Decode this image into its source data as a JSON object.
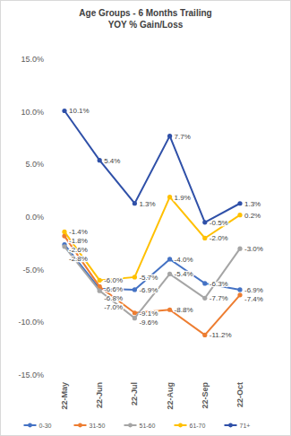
{
  "chart_data": {
    "type": "line",
    "title": "Age Groups - 6 Months Trailing",
    "subtitle": "YOY % Gain/Loss",
    "categories": [
      "22-May",
      "22-Jun",
      "22-Jul",
      "22-Aug",
      "22-Sep",
      "22-Oct"
    ],
    "ylim": [
      -15,
      15
    ],
    "yticks": [
      {
        "value": -15,
        "label": "-15.0%"
      },
      {
        "value": -10,
        "label": "-10.0%"
      },
      {
        "value": -5,
        "label": "-5.0%"
      },
      {
        "value": 0,
        "label": "0.0%"
      },
      {
        "value": 5,
        "label": "5.0%"
      },
      {
        "value": 10,
        "label": "10.0%"
      },
      {
        "value": 15,
        "label": "15.0%"
      }
    ],
    "grid": false,
    "data_labels": true,
    "legend": "bottom",
    "marker": "circle",
    "series": [
      {
        "name": "0-30",
        "color": "#4472c4",
        "values": [
          -2.6,
          -6.8,
          -6.9,
          -4.0,
          -6.3,
          -6.9
        ],
        "value_labels": [
          "-2.6%",
          "-6.8%",
          "-6.9%",
          "-4.0%",
          "-6.3%",
          "-6.9%"
        ]
      },
      {
        "name": "31-50",
        "color": "#ed7d31",
        "values": [
          -1.8,
          -6.6,
          -9.1,
          -8.8,
          -11.2,
          -7.4
        ],
        "value_labels": [
          "-1.8%",
          "-6.6%",
          "-9.1%",
          "-8.8%",
          "-11.2%",
          "-7.4%"
        ]
      },
      {
        "name": "51-60",
        "color": "#a5a5a5",
        "values": [
          -2.8,
          -7.0,
          -9.6,
          -5.4,
          -7.7,
          -3.0
        ],
        "value_labels": [
          "-2.8%",
          "-7.0%",
          "-9.6%",
          "-5.4%",
          "-7.7%",
          "-3.0%"
        ]
      },
      {
        "name": "61-70",
        "color": "#ffc000",
        "values": [
          -1.4,
          -6.0,
          -5.7,
          1.9,
          -2.0,
          0.2
        ],
        "value_labels": [
          "-1.4%",
          "-6.0%",
          "-5.7%",
          "1.9%",
          "-2.0%",
          "0.2%"
        ]
      },
      {
        "name": "71+",
        "color": "#2f50a8",
        "values": [
          10.1,
          5.4,
          1.3,
          7.7,
          -0.5,
          1.3
        ],
        "value_labels": [
          "10.1%",
          "5.4%",
          "1.3%",
          "7.7%",
          "-0.5%",
          "1.3%"
        ]
      }
    ]
  }
}
